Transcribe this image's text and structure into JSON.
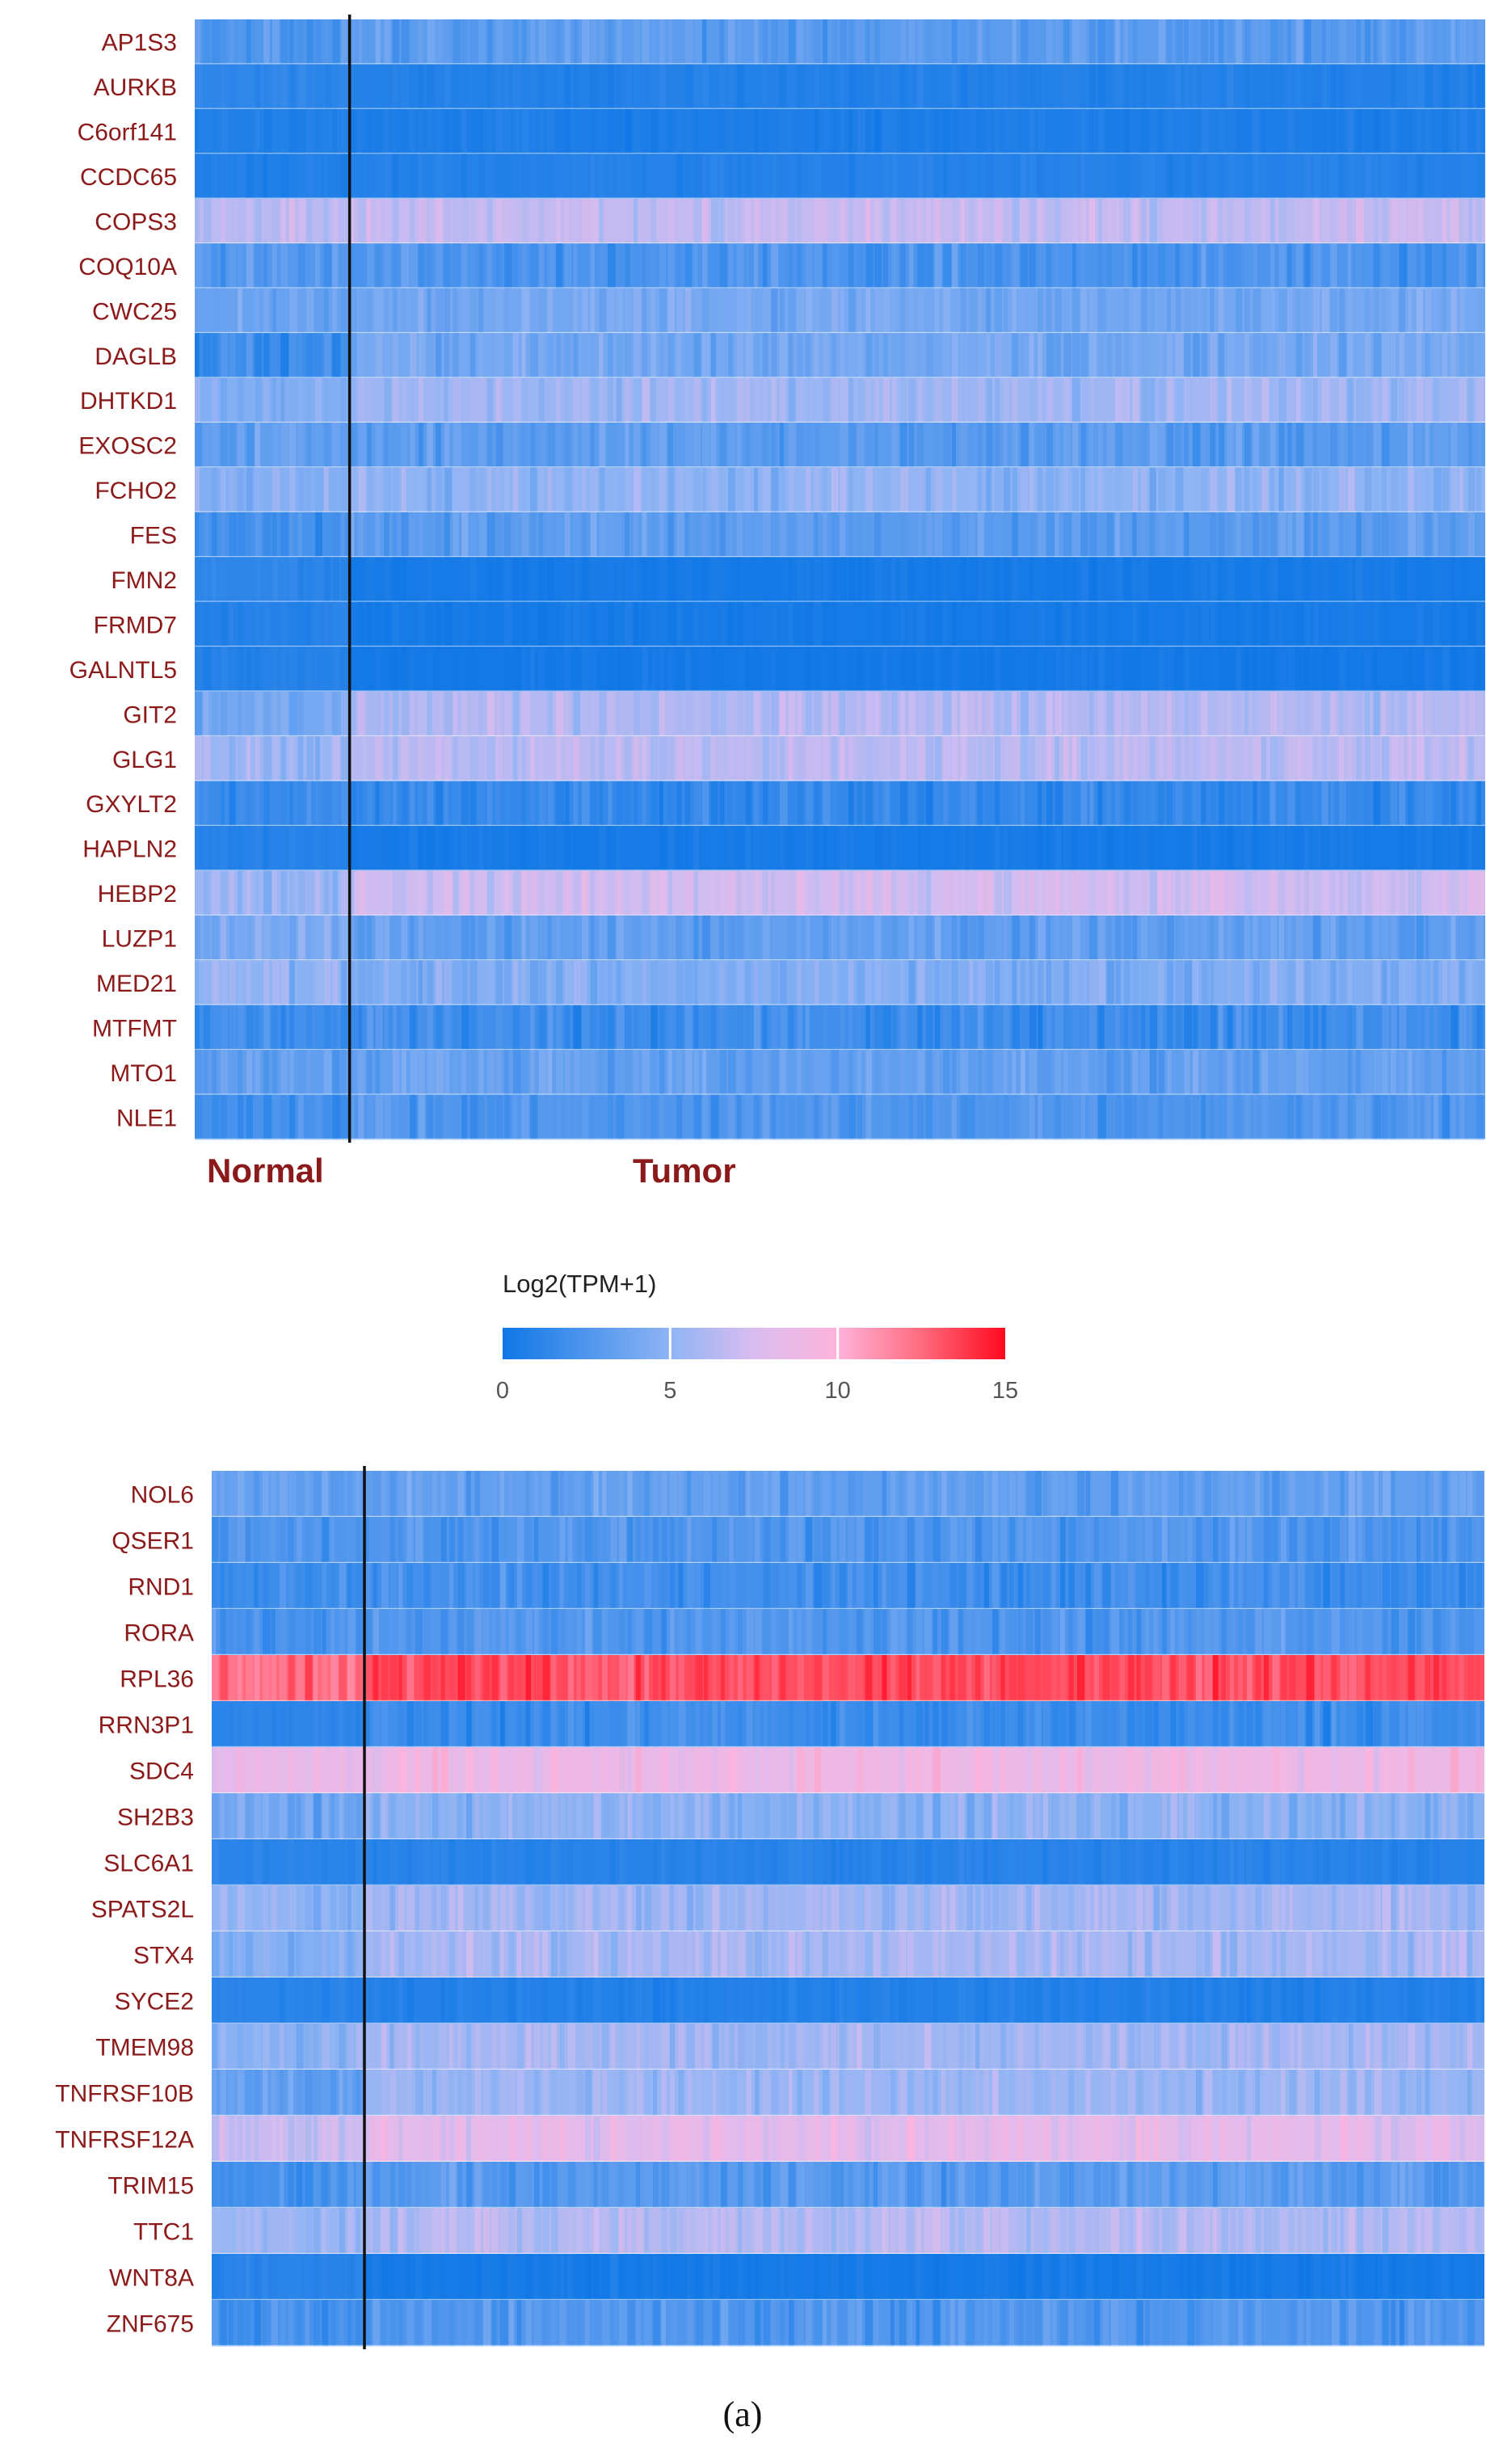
{
  "colors": {
    "low": "#0f77e6",
    "mid": "#d4b6ee",
    "midhigh": "#ffb3db",
    "high": "#ff0a1e",
    "label": "#8c1a1a",
    "divider": "#111111"
  },
  "chart_data": [
    {
      "type": "heatmap",
      "name": "top-heatmap",
      "groups": [
        "Normal",
        "Tumor"
      ],
      "normal_fraction": 0.12,
      "genes": [
        "AP1S3",
        "AURKB",
        "C6orf141",
        "CCDC65",
        "COPS3",
        "COQ10A",
        "CWC25",
        "DAGLB",
        "DHTKD1",
        "EXOSC2",
        "FCHO2",
        "FES",
        "FMN2",
        "FRMD7",
        "GALNTL5",
        "GIT2",
        "GLG1",
        "GXYLT2",
        "HAPLN2",
        "HEBP2",
        "LUZP1",
        "MED21",
        "MTFMT",
        "MTO1",
        "NLE1"
      ],
      "normal_mean": [
        2.5,
        1.3,
        0.8,
        0.7,
        6.5,
        2.7,
        3.5,
        1.8,
        4.5,
        3.2,
        4.6,
        2.2,
        1.2,
        0.9,
        0.8,
        4.0,
        5.5,
        1.7,
        0.9,
        5.5,
        4.2,
        5.0,
        2.0,
        3.2,
        2.2
      ],
      "tumor_mean": [
        3.0,
        0.8,
        0.6,
        0.9,
        6.8,
        2.4,
        4.0,
        4.0,
        5.5,
        3.0,
        5.0,
        3.0,
        0.3,
        0.3,
        0.2,
        6.2,
        6.5,
        1.5,
        0.3,
        7.2,
        3.2,
        4.5,
        1.9,
        3.3,
        2.6
      ],
      "value_unit": "Log2(TPM+1)"
    },
    {
      "type": "heatmap",
      "name": "bottom-heatmap",
      "groups": [
        "Normal",
        "Tumor"
      ],
      "normal_fraction": 0.12,
      "genes": [
        "NOL6",
        "QSER1",
        "RND1",
        "RORA",
        "RPL36",
        "RRN3P1",
        "SDC4",
        "SH2B3",
        "SLC6A1",
        "SPATS2L",
        "STX4",
        "SYCE2",
        "TMEM98",
        "TNFRSF10B",
        "TNFRSF12A",
        "TRIM15",
        "TTC1",
        "WNT8A",
        "ZNF675"
      ],
      "normal_mean": [
        3.3,
        2.6,
        1.8,
        2.4,
        12.5,
        1.2,
        8.5,
        3.8,
        1.1,
        5.0,
        4.5,
        1.0,
        4.8,
        3.2,
        7.0,
        2.2,
        5.5,
        1.0,
        2.2
      ],
      "tumor_mean": [
        3.3,
        2.6,
        2.0,
        2.6,
        13.3,
        1.8,
        8.8,
        4.8,
        1.0,
        5.6,
        5.8,
        0.8,
        5.7,
        5.3,
        8.2,
        3.0,
        6.3,
        0.3,
        2.6
      ],
      "value_unit": "Log2(TPM+1)"
    },
    {
      "type": "colorbar",
      "name": "legend",
      "title": "Log2(TPM+1)",
      "range": [
        0,
        15
      ],
      "ticks": [
        "0",
        "5",
        "10",
        "15"
      ],
      "tick_values": [
        0,
        5,
        10,
        15
      ]
    }
  ],
  "labels": {
    "normal": "Normal",
    "tumor": "Tumor",
    "legend_title": "Log2(TPM+1)",
    "caption": "(a)"
  }
}
